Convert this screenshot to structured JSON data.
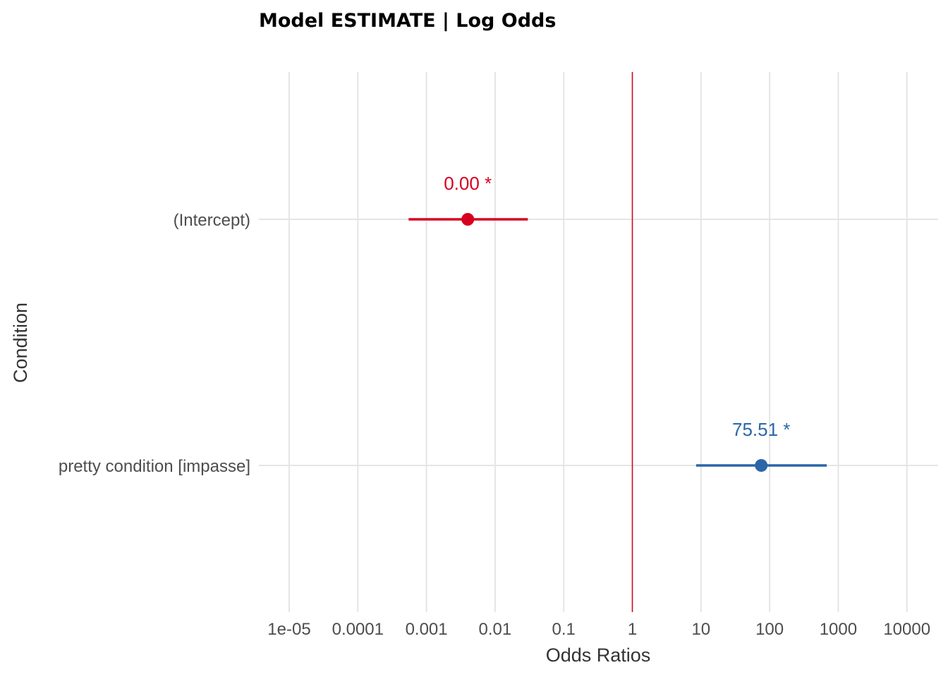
{
  "chart_data": {
    "type": "forest",
    "title": "Model ESTIMATE | Log Odds",
    "xlabel": "Odds Ratios",
    "ylabel": "Condition",
    "x_scale": "log10",
    "xlim": [
      1e-05,
      10000
    ],
    "x_ticks": [
      1e-05,
      0.0001,
      0.001,
      0.01,
      0.1,
      1,
      10,
      100,
      1000,
      10000
    ],
    "x_tick_labels": [
      "1e-05",
      "0.0001",
      "0.001",
      "0.01",
      "0.1",
      "1",
      "10",
      "100",
      "1000",
      "10000"
    ],
    "reference_line": 1,
    "grid": true,
    "terms": [
      {
        "term": "(Intercept)",
        "estimate": 0.004,
        "conf_low": 0.00055,
        "conf_high": 0.03,
        "label": "0.00 *",
        "color": "#d7001f"
      },
      {
        "term": "pretty condition [impasse]",
        "estimate": 75.51,
        "conf_low": 8.5,
        "conf_high": 680,
        "label": "75.51 *",
        "color": "#2b66a8"
      }
    ],
    "colors": {
      "grid": "#e5e5e5",
      "reference_line": "#d7001f"
    }
  }
}
